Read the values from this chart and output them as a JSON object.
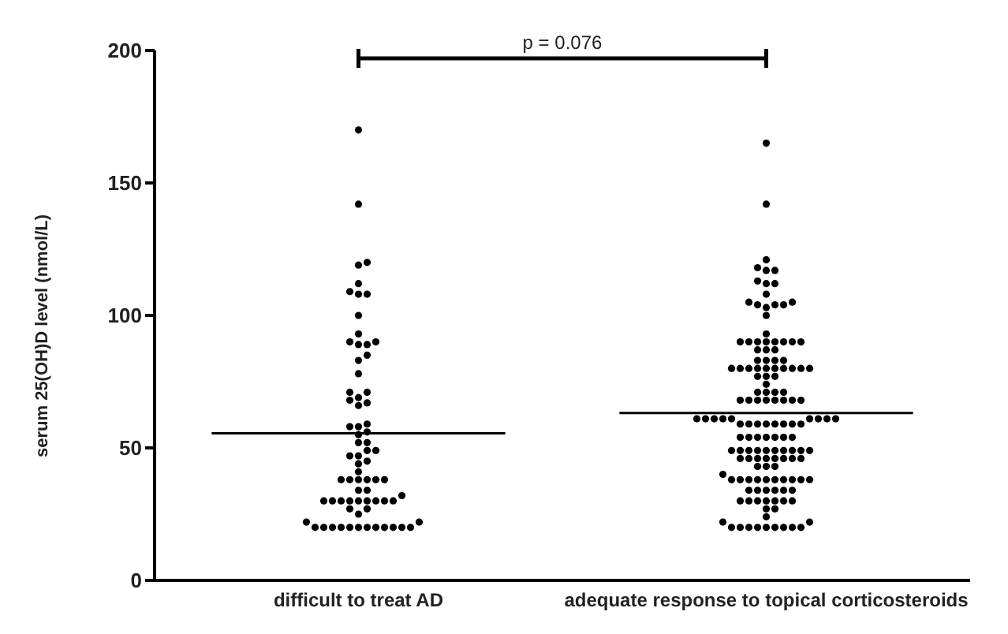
{
  "chart_data": {
    "type": "scatter",
    "ylabel": "serum 25(OH)D level (nmol/L)",
    "categories": [
      "difficult to treat AD",
      "adequate response to topical corticosteroids"
    ],
    "ylim": [
      0,
      200
    ],
    "yticks": [
      0,
      50,
      100,
      150,
      200
    ],
    "annotations": [
      "p = 0.076"
    ],
    "marker": "circle",
    "series": [
      {
        "color": "#000000",
        "x": [
          "difficult to treat AD",
          "difficult to treat AD",
          "difficult to treat AD",
          "difficult to treat AD",
          "difficult to treat AD",
          "difficult to treat AD",
          "difficult to treat AD",
          "difficult to treat AD",
          "difficult to treat AD",
          "difficult to treat AD",
          "difficult to treat AD",
          "difficult to treat AD",
          "difficult to treat AD",
          "difficult to treat AD",
          "difficult to treat AD",
          "difficult to treat AD",
          "difficult to treat AD",
          "difficult to treat AD",
          "difficult to treat AD",
          "difficult to treat AD",
          "difficult to treat AD",
          "difficult to treat AD",
          "difficult to treat AD",
          "difficult to treat AD",
          "difficult to treat AD",
          "difficult to treat AD",
          "difficult to treat AD",
          "difficult to treat AD",
          "difficult to treat AD",
          "difficult to treat AD",
          "difficult to treat AD",
          "difficult to treat AD",
          "difficult to treat AD",
          "difficult to treat AD",
          "difficult to treat AD",
          "difficult to treat AD",
          "difficult to treat AD",
          "difficult to treat AD",
          "difficult to treat AD",
          "difficult to treat AD",
          "difficult to treat AD",
          "difficult to treat AD",
          "difficult to treat AD",
          "difficult to treat AD",
          "difficult to treat AD",
          "difficult to treat AD",
          "difficult to treat AD",
          "difficult to treat AD",
          "difficult to treat AD",
          "difficult to treat AD",
          "difficult to treat AD",
          "difficult to treat AD",
          "difficult to treat AD",
          "difficult to treat AD",
          "difficult to treat AD",
          "difficult to treat AD",
          "difficult to treat AD",
          "difficult to treat AD",
          "difficult to treat AD",
          "difficult to treat AD",
          "difficult to treat AD",
          "difficult to treat AD",
          "difficult to treat AD",
          "difficult to treat AD",
          "difficult to treat AD",
          "difficult to treat AD",
          "difficult to treat AD",
          "difficult to treat AD",
          "difficult to treat AD",
          "difficult to treat AD",
          "difficult to treat AD",
          "difficult to treat AD"
        ],
        "values": [
          170,
          142,
          120,
          119,
          112,
          109,
          108,
          108,
          100,
          93,
          90,
          90,
          89,
          89,
          85,
          83,
          78,
          71,
          71,
          69,
          68,
          67,
          66,
          58,
          59,
          58,
          56,
          55,
          52,
          52,
          49,
          49,
          47,
          47,
          45,
          44,
          41,
          38,
          38,
          38,
          38,
          38,
          38,
          34,
          34,
          32,
          30,
          30,
          30,
          30,
          30,
          30,
          30,
          30,
          30,
          27,
          27,
          25,
          22,
          22,
          20,
          20,
          20,
          20,
          20,
          20,
          20,
          20,
          20,
          20,
          20,
          20
        ]
      },
      {
        "color": "#000000",
        "x": [
          "adequate response to topical corticosteroids",
          "adequate response to topical corticosteroids",
          "adequate response to topical corticosteroids",
          "adequate response to topical corticosteroids",
          "adequate response to topical corticosteroids",
          "adequate response to topical corticosteroids",
          "adequate response to topical corticosteroids",
          "adequate response to topical corticosteroids",
          "adequate response to topical corticosteroids",
          "adequate response to topical corticosteroids",
          "adequate response to topical corticosteroids",
          "adequate response to topical corticosteroids",
          "adequate response to topical corticosteroids",
          "adequate response to topical corticosteroids",
          "adequate response to topical corticosteroids",
          "adequate response to topical corticosteroids",
          "adequate response to topical corticosteroids",
          "adequate response to topical corticosteroids",
          "adequate response to topical corticosteroids",
          "adequate response to topical corticosteroids",
          "adequate response to topical corticosteroids",
          "adequate response to topical corticosteroids",
          "adequate response to topical corticosteroids",
          "adequate response to topical corticosteroids",
          "adequate response to topical corticosteroids",
          "adequate response to topical corticosteroids",
          "adequate response to topical corticosteroids",
          "adequate response to topical corticosteroids",
          "adequate response to topical corticosteroids",
          "adequate response to topical corticosteroids",
          "adequate response to topical corticosteroids",
          "adequate response to topical corticosteroids",
          "adequate response to topical corticosteroids",
          "adequate response to topical corticosteroids",
          "adequate response to topical corticosteroids",
          "adequate response to topical corticosteroids",
          "adequate response to topical corticosteroids",
          "adequate response to topical corticosteroids",
          "adequate response to topical corticosteroids",
          "adequate response to topical corticosteroids",
          "adequate response to topical corticosteroids",
          "adequate response to topical corticosteroids",
          "adequate response to topical corticosteroids",
          "adequate response to topical corticosteroids",
          "adequate response to topical corticosteroids",
          "adequate response to topical corticosteroids",
          "adequate response to topical corticosteroids",
          "adequate response to topical corticosteroids",
          "adequate response to topical corticosteroids",
          "adequate response to topical corticosteroids",
          "adequate response to topical corticosteroids",
          "adequate response to topical corticosteroids",
          "adequate response to topical corticosteroids",
          "adequate response to topical corticosteroids",
          "adequate response to topical corticosteroids",
          "adequate response to topical corticosteroids",
          "adequate response to topical corticosteroids",
          "adequate response to topical corticosteroids",
          "adequate response to topical corticosteroids",
          "adequate response to topical corticosteroids",
          "adequate response to topical corticosteroids",
          "adequate response to topical corticosteroids",
          "adequate response to topical corticosteroids",
          "adequate response to topical corticosteroids",
          "adequate response to topical corticosteroids",
          "adequate response to topical corticosteroids",
          "adequate response to topical corticosteroids",
          "adequate response to topical corticosteroids",
          "adequate response to topical corticosteroids",
          "adequate response to topical corticosteroids",
          "adequate response to topical corticosteroids",
          "adequate response to topical corticosteroids",
          "adequate response to topical corticosteroids",
          "adequate response to topical corticosteroids",
          "adequate response to topical corticosteroids",
          "adequate response to topical corticosteroids",
          "adequate response to topical corticosteroids",
          "adequate response to topical corticosteroids",
          "adequate response to topical corticosteroids",
          "adequate response to topical corticosteroids",
          "adequate response to topical corticosteroids",
          "adequate response to topical corticosteroids",
          "adequate response to topical corticosteroids",
          "adequate response to topical corticosteroids",
          "adequate response to topical corticosteroids",
          "adequate response to topical corticosteroids",
          "adequate response to topical corticosteroids",
          "adequate response to topical corticosteroids",
          "adequate response to topical corticosteroids",
          "adequate response to topical corticosteroids",
          "adequate response to topical corticosteroids",
          "adequate response to topical corticosteroids",
          "adequate response to topical corticosteroids",
          "adequate response to topical corticosteroids",
          "adequate response to topical corticosteroids",
          "adequate response to topical corticosteroids",
          "adequate response to topical corticosteroids",
          "adequate response to topical corticosteroids",
          "adequate response to topical corticosteroids",
          "adequate response to topical corticosteroids",
          "adequate response to topical corticosteroids",
          "adequate response to topical corticosteroids",
          "adequate response to topical corticosteroids",
          "adequate response to topical corticosteroids",
          "adequate response to topical corticosteroids",
          "adequate response to topical corticosteroids",
          "adequate response to topical corticosteroids",
          "adequate response to topical corticosteroids",
          "adequate response to topical corticosteroids",
          "adequate response to topical corticosteroids",
          "adequate response to topical corticosteroids",
          "adequate response to topical corticosteroids",
          "adequate response to topical corticosteroids",
          "adequate response to topical corticosteroids",
          "adequate response to topical corticosteroids",
          "adequate response to topical corticosteroids",
          "adequate response to topical corticosteroids",
          "adequate response to topical corticosteroids",
          "adequate response to topical corticosteroids",
          "adequate response to topical corticosteroids",
          "adequate response to topical corticosteroids",
          "adequate response to topical corticosteroids",
          "adequate response to topical corticosteroids",
          "adequate response to topical corticosteroids",
          "adequate response to topical corticosteroids",
          "adequate response to topical corticosteroids",
          "adequate response to topical corticosteroids",
          "adequate response to topical corticosteroids",
          "adequate response to topical corticosteroids",
          "adequate response to topical corticosteroids",
          "adequate response to topical corticosteroids",
          "adequate response to topical corticosteroids",
          "adequate response to topical corticosteroids",
          "adequate response to topical corticosteroids",
          "adequate response to topical corticosteroids",
          "adequate response to topical corticosteroids",
          "adequate response to topical corticosteroids",
          "adequate response to topical corticosteroids",
          "adequate response to topical corticosteroids",
          "adequate response to topical corticosteroids",
          "adequate response to topical corticosteroids",
          "adequate response to topical corticosteroids"
        ],
        "values": [
          165,
          142,
          121,
          118,
          117,
          117,
          113,
          112,
          112,
          108,
          105,
          105,
          104,
          104,
          104,
          103,
          100,
          93,
          90,
          90,
          90,
          90,
          90,
          90,
          90,
          90,
          87,
          87,
          87,
          83,
          83,
          83,
          83,
          80,
          80,
          80,
          80,
          80,
          80,
          80,
          80,
          80,
          80,
          77,
          77,
          77,
          74,
          71,
          71,
          71,
          71,
          68,
          68,
          68,
          68,
          68,
          68,
          68,
          68,
          61,
          61,
          61,
          61,
          61,
          61,
          61,
          61,
          61,
          59,
          59,
          59,
          59,
          59,
          59,
          59,
          59,
          54,
          54,
          54,
          54,
          54,
          54,
          54,
          49,
          49,
          49,
          49,
          49,
          49,
          49,
          49,
          49,
          49,
          46,
          46,
          46,
          46,
          46,
          46,
          46,
          46,
          43,
          43,
          43,
          40,
          38,
          38,
          38,
          38,
          38,
          38,
          38,
          38,
          38,
          38,
          34,
          34,
          34,
          34,
          34,
          34,
          30,
          30,
          30,
          30,
          30,
          30,
          30,
          27,
          27,
          24,
          22,
          22,
          20,
          20,
          20,
          20,
          20,
          20,
          20,
          20,
          20
        ]
      }
    ],
    "ref_lines": [
      {
        "axis": "y",
        "value": 55.5,
        "color": "#000000"
      },
      {
        "axis": "y",
        "value": 63.2,
        "color": "#000000"
      }
    ]
  }
}
